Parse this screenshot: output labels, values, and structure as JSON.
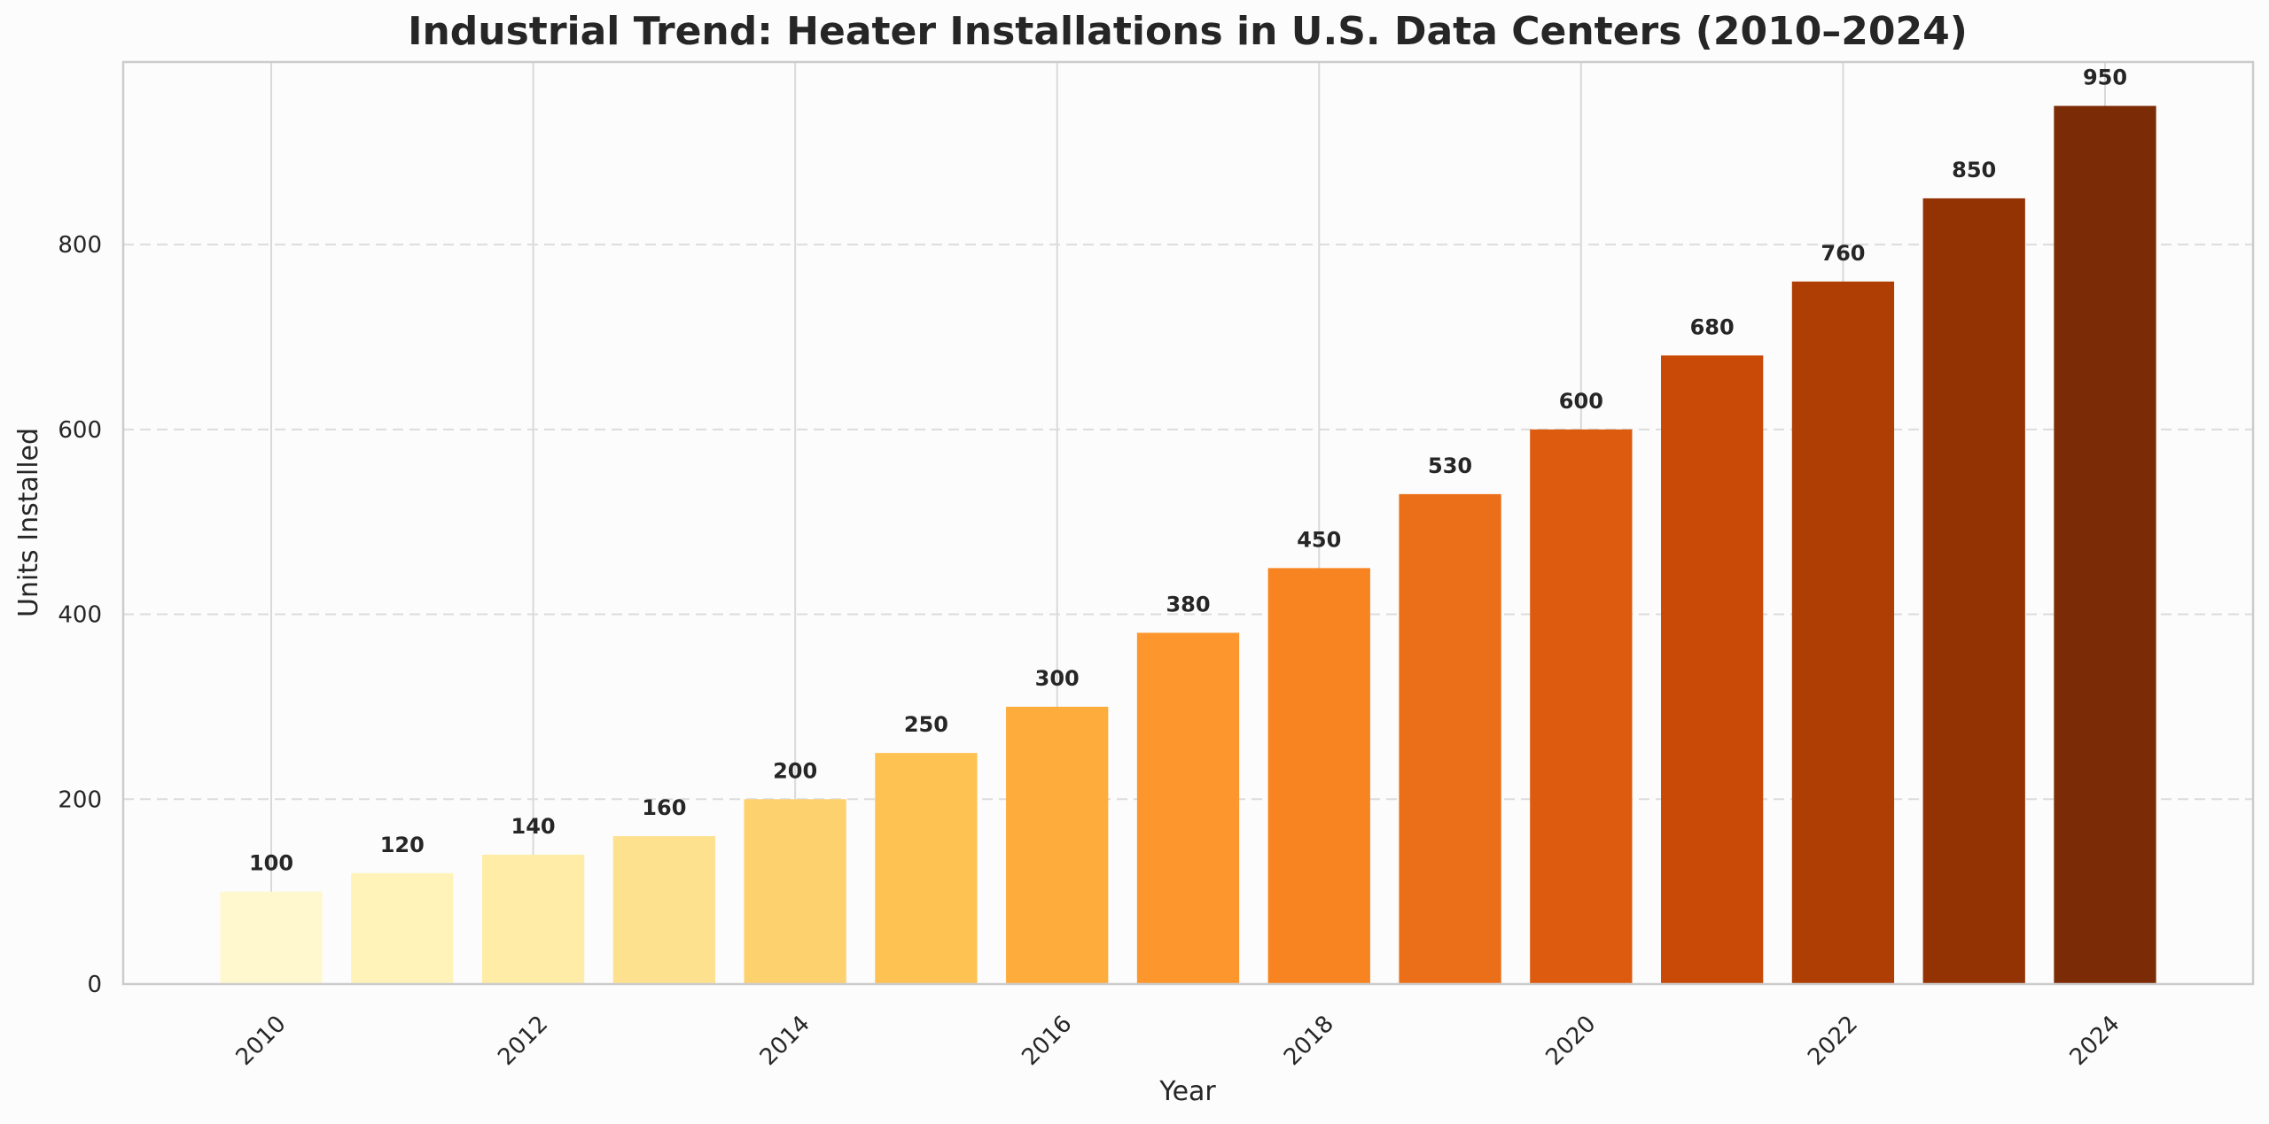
{
  "chart_data": {
    "type": "bar",
    "title": "Industrial Trend: Heater Installations in U.S. Data Centers (2010–2024)",
    "xlabel": "Year",
    "ylabel": "Units Installed",
    "categories": [
      "2010",
      "2011",
      "2012",
      "2013",
      "2014",
      "2015",
      "2016",
      "2017",
      "2018",
      "2019",
      "2020",
      "2021",
      "2022",
      "2023",
      "2024"
    ],
    "values": [
      100,
      120,
      140,
      160,
      200,
      250,
      300,
      380,
      450,
      530,
      600,
      680,
      760,
      850,
      950
    ],
    "x_tick_labels": [
      "2010",
      "2012",
      "2014",
      "2016",
      "2018",
      "2020",
      "2022",
      "2024"
    ],
    "y_ticks": [
      0,
      200,
      400,
      600,
      800
    ],
    "ylim": [
      0,
      997.5
    ],
    "xlim": [
      2008.87,
      2025.13
    ],
    "grid": {
      "y": "dashed",
      "x": "solid"
    },
    "bar_colors": [
      "#fff8cf",
      "#fff3b9",
      "#ffeca6",
      "#fee18e",
      "#fed16f",
      "#fec252",
      "#feac3c",
      "#fd962c",
      "#f78321",
      "#eb6f18",
      "#dc5b0e",
      "#c94906",
      "#ae3e04",
      "#933304",
      "#7b2b06"
    ],
    "data_label_color": "#262626"
  }
}
